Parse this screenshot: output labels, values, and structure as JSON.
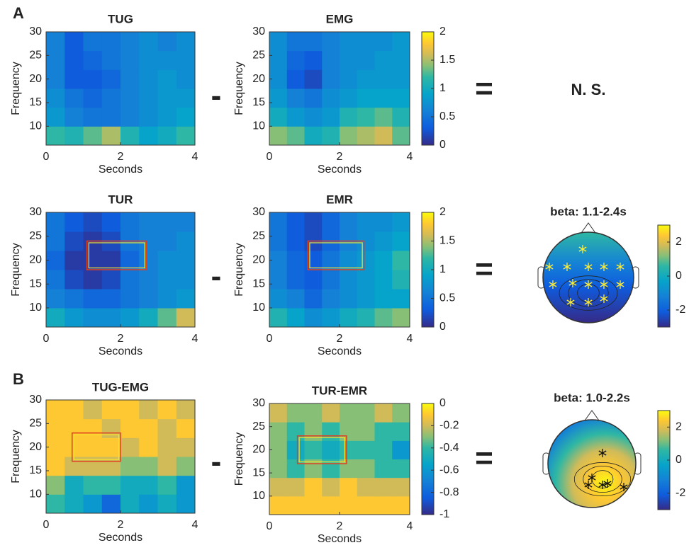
{
  "labels": [
    "A",
    "B"
  ],
  "minus": "-",
  "equals": "=",
  "ns": "N. S.",
  "chart_data": [
    {
      "type": "heatmap",
      "title": "TUG",
      "xlabel": "Seconds",
      "ylabel": "Frequency",
      "xlim": [
        0,
        4
      ],
      "ylim": [
        6,
        30
      ],
      "xticks": [
        0,
        2,
        4
      ],
      "yticks": [
        10,
        15,
        20,
        25,
        30
      ],
      "clim": [
        0,
        2
      ],
      "z": [
        [
          1.2,
          1.1,
          1.3,
          1.5,
          1.1,
          0.9,
          1.0,
          1.2
        ],
        [
          0.8,
          0.6,
          0.5,
          0.5,
          0.6,
          0.7,
          0.8,
          0.9
        ],
        [
          0.7,
          0.5,
          0.4,
          0.5,
          0.6,
          0.7,
          0.8,
          0.8
        ],
        [
          0.6,
          0.3,
          0.3,
          0.4,
          0.6,
          0.7,
          0.8,
          0.7
        ],
        [
          0.6,
          0.3,
          0.4,
          0.5,
          0.6,
          0.7,
          0.7,
          0.7
        ],
        [
          0.6,
          0.3,
          0.5,
          0.5,
          0.6,
          0.7,
          0.6,
          0.7
        ]
      ]
    },
    {
      "type": "heatmap",
      "title": "EMG",
      "xlabel": "Seconds",
      "ylabel": "Frequency",
      "xlim": [
        0,
        4
      ],
      "ylim": [
        6,
        30
      ],
      "xticks": [
        0,
        2,
        4
      ],
      "yticks": [
        10,
        15,
        20,
        25,
        30
      ],
      "clim": [
        0,
        2
      ],
      "colorbar_ticks": [
        0,
        0.5,
        1,
        1.5,
        2
      ],
      "z": [
        [
          1.4,
          1.3,
          1.0,
          1.1,
          1.4,
          1.5,
          1.6,
          1.3
        ],
        [
          1.0,
          0.8,
          0.7,
          0.8,
          1.1,
          1.2,
          1.3,
          1.1
        ],
        [
          0.8,
          0.6,
          0.5,
          0.7,
          0.8,
          0.9,
          0.9,
          0.9
        ],
        [
          0.7,
          0.3,
          0.2,
          0.6,
          0.7,
          0.8,
          0.8,
          0.8
        ],
        [
          0.7,
          0.4,
          0.3,
          0.6,
          0.7,
          0.7,
          0.8,
          0.8
        ],
        [
          0.7,
          0.5,
          0.5,
          0.6,
          0.7,
          0.7,
          0.7,
          0.8
        ]
      ]
    },
    {
      "type": "heatmap",
      "title": "TUR",
      "xlabel": "Seconds",
      "ylabel": "Frequency",
      "xlim": [
        0,
        4
      ],
      "ylim": [
        6,
        30
      ],
      "xticks": [
        0,
        2,
        4
      ],
      "yticks": [
        10,
        15,
        20,
        25,
        30
      ],
      "clim": [
        0,
        2
      ],
      "roi": {
        "x": [
          1.1,
          2.7
        ],
        "y": [
          18,
          24
        ]
      },
      "z": [
        [
          1.0,
          0.8,
          0.7,
          0.7,
          0.8,
          1.0,
          1.3,
          1.6
        ],
        [
          0.6,
          0.5,
          0.4,
          0.4,
          0.5,
          0.6,
          0.7,
          0.8
        ],
        [
          0.5,
          0.2,
          0.1,
          0.2,
          0.5,
          0.6,
          0.7,
          0.7
        ],
        [
          0.4,
          0.1,
          0.1,
          0.1,
          0.4,
          0.6,
          0.7,
          0.7
        ],
        [
          0.5,
          0.2,
          0.1,
          0.2,
          0.5,
          0.6,
          0.6,
          0.7
        ],
        [
          0.5,
          0.3,
          0.2,
          0.3,
          0.5,
          0.6,
          0.6,
          0.6
        ]
      ]
    },
    {
      "type": "heatmap",
      "title": "EMR",
      "xlabel": "Seconds",
      "ylabel": "Frequency",
      "xlim": [
        0,
        4
      ],
      "ylim": [
        6,
        30
      ],
      "xticks": [
        0,
        2,
        4
      ],
      "yticks": [
        10,
        15,
        20,
        25,
        30
      ],
      "clim": [
        0,
        2
      ],
      "colorbar_ticks": [
        0,
        0.5,
        1,
        1.5,
        2
      ],
      "roi": {
        "x": [
          1.1,
          2.7
        ],
        "y": [
          18,
          24
        ]
      },
      "z": [
        [
          1.1,
          0.9,
          0.7,
          0.8,
          1.0,
          1.1,
          1.3,
          1.4
        ],
        [
          0.7,
          0.6,
          0.4,
          0.6,
          0.7,
          0.8,
          0.9,
          0.9
        ],
        [
          0.6,
          0.4,
          0.3,
          0.5,
          0.7,
          0.8,
          0.9,
          1.1
        ],
        [
          0.6,
          0.4,
          0.3,
          0.5,
          0.7,
          0.8,
          0.9,
          1.2
        ],
        [
          0.5,
          0.3,
          0.2,
          0.4,
          0.6,
          0.7,
          0.8,
          0.9
        ],
        [
          0.5,
          0.3,
          0.2,
          0.4,
          0.6,
          0.7,
          0.7,
          0.8
        ]
      ]
    },
    {
      "type": "topoplot",
      "title": "beta: 1.1-2.4s",
      "clim": [
        -3,
        3
      ],
      "colorbar_ticks": [
        -2,
        0,
        2
      ]
    },
    {
      "type": "heatmap",
      "title": "TUG-EMG",
      "xlabel": "Seconds",
      "ylabel": "Frequency",
      "xlim": [
        0,
        4
      ],
      "ylim": [
        6,
        30
      ],
      "xticks": [
        0,
        2,
        4
      ],
      "yticks": [
        10,
        15,
        20,
        25,
        30
      ],
      "clim": [
        -1,
        0
      ],
      "roi": {
        "x": [
          0.7,
          2.0
        ],
        "y": [
          17,
          23
        ]
      },
      "z": [
        [
          -0.4,
          -0.5,
          -0.6,
          -0.8,
          -0.5,
          -0.6,
          -0.5,
          -0.6
        ],
        [
          -0.3,
          -0.5,
          -0.4,
          -0.4,
          -0.5,
          -0.5,
          -0.4,
          -0.6
        ],
        [
          -0.1,
          -0.2,
          -0.2,
          -0.2,
          -0.3,
          -0.3,
          -0.2,
          -0.3
        ],
        [
          -0.1,
          -0.1,
          -0.1,
          -0.1,
          -0.2,
          -0.1,
          -0.2,
          -0.2
        ],
        [
          -0.1,
          -0.1,
          -0.1,
          -0.2,
          -0.1,
          -0.1,
          -0.2,
          -0.1
        ],
        [
          -0.1,
          -0.1,
          -0.2,
          -0.1,
          -0.1,
          -0.2,
          -0.1,
          -0.2
        ]
      ]
    },
    {
      "type": "heatmap",
      "title": "TUR-EMR",
      "xlabel": "Seconds",
      "ylabel": "Frequency",
      "xlim": [
        0,
        4
      ],
      "ylim": [
        6,
        30
      ],
      "xticks": [
        0,
        2,
        4
      ],
      "yticks": [
        10,
        15,
        20,
        25,
        30
      ],
      "clim": [
        -1,
        0
      ],
      "colorbar_ticks": [
        0,
        -0.2,
        -0.4,
        -0.6,
        -0.8,
        -1
      ],
      "roi": {
        "x": [
          0.8,
          2.2
        ],
        "y": [
          17,
          23
        ]
      },
      "z": [
        [
          -0.1,
          -0.1,
          -0.1,
          -0.1,
          -0.1,
          -0.1,
          -0.1,
          -0.1
        ],
        [
          -0.2,
          -0.2,
          -0.1,
          -0.2,
          -0.1,
          -0.2,
          -0.2,
          -0.2
        ],
        [
          -0.3,
          -0.4,
          -0.3,
          -0.4,
          -0.3,
          -0.3,
          -0.4,
          -0.4
        ],
        [
          -0.3,
          -0.5,
          -0.4,
          -0.5,
          -0.4,
          -0.4,
          -0.4,
          -0.6
        ],
        [
          -0.3,
          -0.4,
          -0.3,
          -0.4,
          -0.3,
          -0.3,
          -0.4,
          -0.4
        ],
        [
          -0.2,
          -0.3,
          -0.3,
          -0.2,
          -0.3,
          -0.3,
          -0.2,
          -0.3
        ]
      ]
    },
    {
      "type": "topoplot",
      "title": "beta: 1.0-2.2s",
      "clim": [
        -3,
        3
      ],
      "colorbar_ticks": [
        -2,
        0,
        2
      ]
    }
  ]
}
